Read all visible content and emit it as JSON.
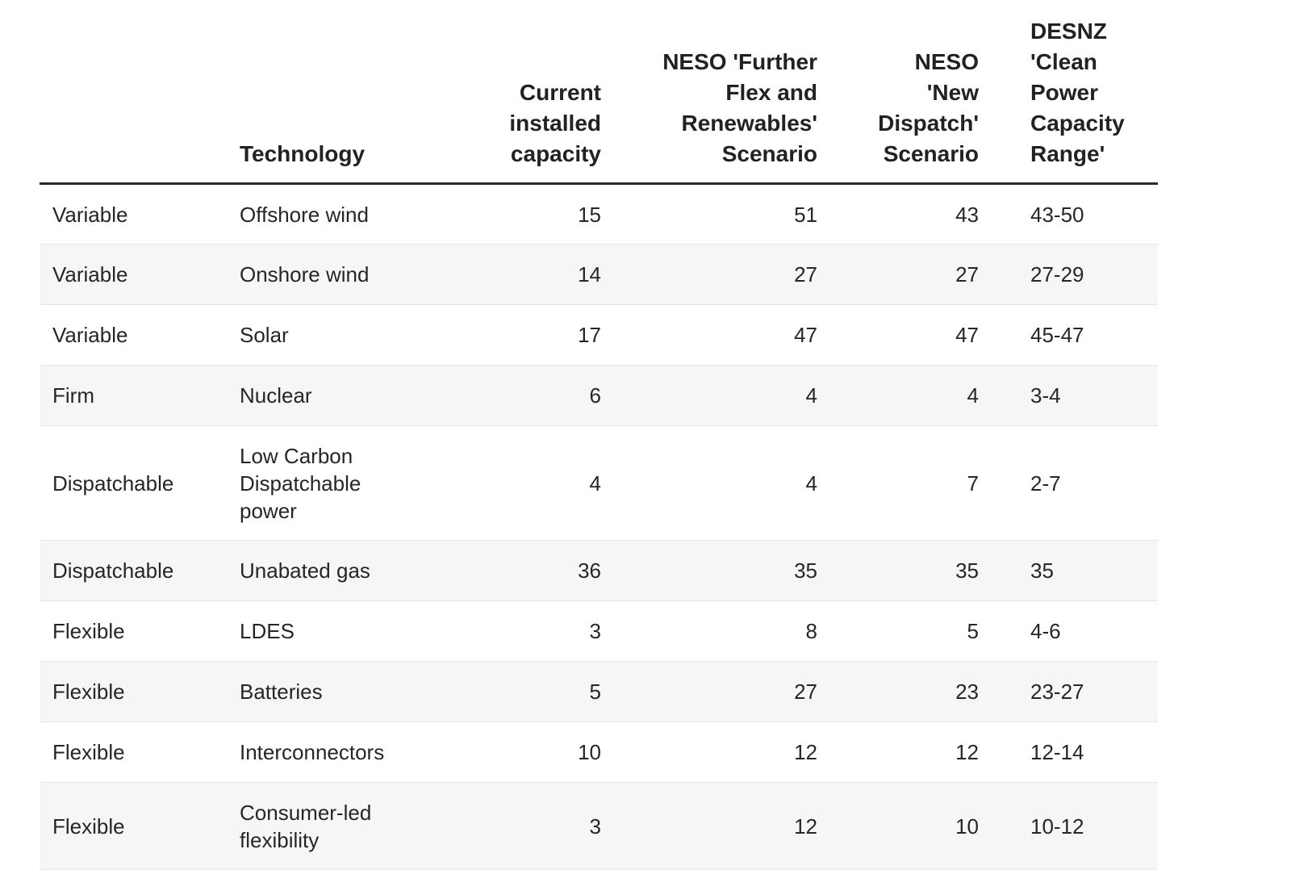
{
  "chart_data": {
    "type": "table",
    "columns": [
      "",
      "Technology",
      "Current installed capacity",
      "NESO 'Further Flex and Renewables' Scenario",
      "NESO 'New Dispatch' Scenario",
      "DESNZ 'Clean Power Capacity Range'"
    ],
    "header_lines": [
      [
        ""
      ],
      [
        "Technology"
      ],
      [
        "Current",
        "installed",
        "capacity"
      ],
      [
        "NESO 'Further",
        "Flex and",
        "Renewables'",
        "Scenario"
      ],
      [
        "NESO",
        "'New",
        "Dispatch'",
        "Scenario"
      ],
      [
        "DESNZ 'Clean",
        "Power",
        "Capacity",
        "Range'"
      ]
    ],
    "rows": [
      {
        "category": "Variable",
        "technology": [
          "Offshore wind"
        ],
        "current": "15",
        "further_flex": "51",
        "new_dispatch": "43",
        "desnz_range": "43-50"
      },
      {
        "category": "Variable",
        "technology": [
          "Onshore wind"
        ],
        "current": "14",
        "further_flex": "27",
        "new_dispatch": "27",
        "desnz_range": "27-29"
      },
      {
        "category": "Variable",
        "technology": [
          "Solar"
        ],
        "current": "17",
        "further_flex": "47",
        "new_dispatch": "47",
        "desnz_range": "45-47"
      },
      {
        "category": "Firm",
        "technology": [
          "Nuclear"
        ],
        "current": "6",
        "further_flex": "4",
        "new_dispatch": "4",
        "desnz_range": "3-4"
      },
      {
        "category": "Dispatchable",
        "technology": [
          "Low Carbon",
          "Dispatchable",
          "power"
        ],
        "current": "4",
        "further_flex": "4",
        "new_dispatch": "7",
        "desnz_range": "2-7"
      },
      {
        "category": "Dispatchable",
        "technology": [
          "Unabated gas"
        ],
        "current": "36",
        "further_flex": "35",
        "new_dispatch": "35",
        "desnz_range": "35"
      },
      {
        "category": "Flexible",
        "technology": [
          "LDES"
        ],
        "current": "3",
        "further_flex": "8",
        "new_dispatch": "5",
        "desnz_range": "4-6"
      },
      {
        "category": "Flexible",
        "technology": [
          "Batteries"
        ],
        "current": "5",
        "further_flex": "27",
        "new_dispatch": "23",
        "desnz_range": "23-27"
      },
      {
        "category": "Flexible",
        "technology": [
          "Interconnectors"
        ],
        "current": "10",
        "further_flex": "12",
        "new_dispatch": "12",
        "desnz_range": "12-14"
      },
      {
        "category": "Flexible",
        "technology": [
          "Consumer-led",
          "flexibility"
        ],
        "current": "3",
        "further_flex": "12",
        "new_dispatch": "10",
        "desnz_range": "10-12"
      }
    ],
    "colors": {
      "header_rule": "#2a2a2a",
      "row_divider": "#e6e6e6",
      "stripe": "#f6f6f6",
      "text": "#262626"
    }
  }
}
